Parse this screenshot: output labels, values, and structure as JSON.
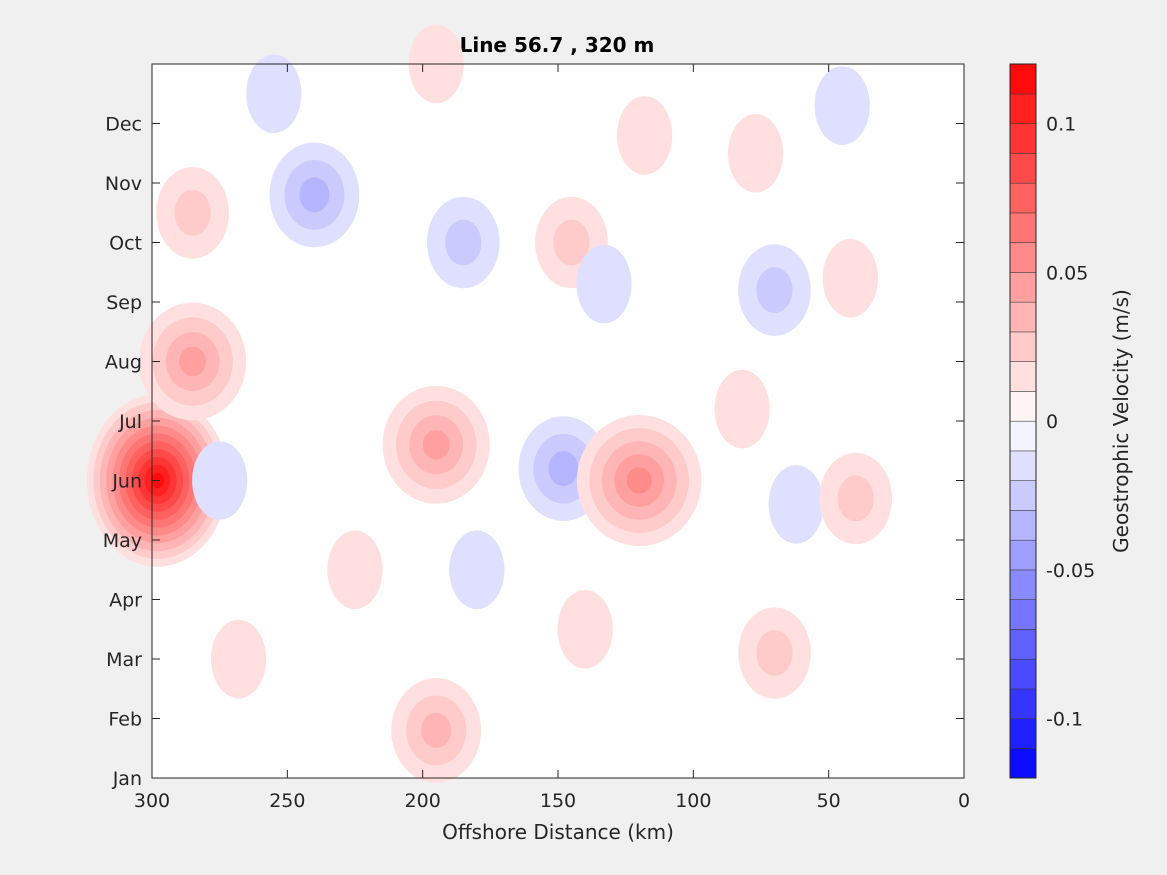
{
  "chart_data": {
    "type": "heatmap",
    "subtype": "filled-contour",
    "title": "Line 56.7 , 320 m",
    "xlabel": "Offshore Distance (km)",
    "ylabel": "",
    "xlim": [
      300,
      0
    ],
    "x_direction": "reversed",
    "x_ticks": [
      300,
      250,
      200,
      150,
      100,
      50,
      0
    ],
    "y_tick_labels": [
      "Jan",
      "Feb",
      "Mar",
      "Apr",
      "May",
      "Jun",
      "Jul",
      "Aug",
      "Sep",
      "Oct",
      "Nov",
      "Dec"
    ],
    "y_tick_values": [
      0,
      1,
      2,
      3,
      4,
      5,
      6,
      7,
      8,
      9,
      10,
      11
    ],
    "ylim": [
      0,
      12
    ],
    "data_x_extent": [
      30,
      300
    ],
    "grid": false,
    "colorbar": {
      "label": "Geostrophic Velocity (m/s)",
      "limits": [
        -0.12,
        0.12
      ],
      "step": 0.01,
      "ticks": [
        -0.1,
        -0.05,
        0,
        0.05,
        0.1
      ],
      "tick_labels": [
        "-0.1",
        "-0.05",
        "0",
        "0.05",
        "0.1"
      ],
      "negative_color": "#0000ff",
      "positive_color": "#ff0000",
      "neutral_color": "#ffffff"
    },
    "features": [
      {
        "x": 298,
        "month": 5.0,
        "peak": 0.115
      },
      {
        "x": 285,
        "month": 7.0,
        "peak": 0.04
      },
      {
        "x": 285,
        "month": 9.5,
        "peak": 0.02
      },
      {
        "x": 275,
        "month": 5.0,
        "peak": -0.015
      },
      {
        "x": 268,
        "month": 2.0,
        "peak": 0.01
      },
      {
        "x": 240,
        "month": 9.8,
        "peak": -0.035
      },
      {
        "x": 255,
        "month": 11.5,
        "peak": -0.01
      },
      {
        "x": 225,
        "month": 3.5,
        "peak": 0.01
      },
      {
        "x": 195,
        "month": 5.6,
        "peak": 0.04
      },
      {
        "x": 195,
        "month": 0.8,
        "peak": 0.03
      },
      {
        "x": 195,
        "month": 12.0,
        "peak": 0.01
      },
      {
        "x": 185,
        "month": 9.0,
        "peak": -0.02
      },
      {
        "x": 180,
        "month": 3.5,
        "peak": -0.01
      },
      {
        "x": 148,
        "month": 5.2,
        "peak": -0.035
      },
      {
        "x": 145,
        "month": 9.0,
        "peak": 0.02
      },
      {
        "x": 140,
        "month": 2.5,
        "peak": 0.01
      },
      {
        "x": 133,
        "month": 8.3,
        "peak": -0.01
      },
      {
        "x": 120,
        "month": 5.0,
        "peak": 0.05
      },
      {
        "x": 118,
        "month": 10.8,
        "peak": 0.01
      },
      {
        "x": 82,
        "month": 6.2,
        "peak": 0.01
      },
      {
        "x": 77,
        "month": 10.5,
        "peak": 0.015
      },
      {
        "x": 70,
        "month": 2.1,
        "peak": 0.025
      },
      {
        "x": 70,
        "month": 8.2,
        "peak": -0.02
      },
      {
        "x": 62,
        "month": 4.6,
        "peak": -0.01
      },
      {
        "x": 45,
        "month": 11.3,
        "peak": -0.012
      },
      {
        "x": 40,
        "month": 4.7,
        "peak": 0.02
      },
      {
        "x": 42,
        "month": 8.4,
        "peak": 0.012
      }
    ]
  }
}
